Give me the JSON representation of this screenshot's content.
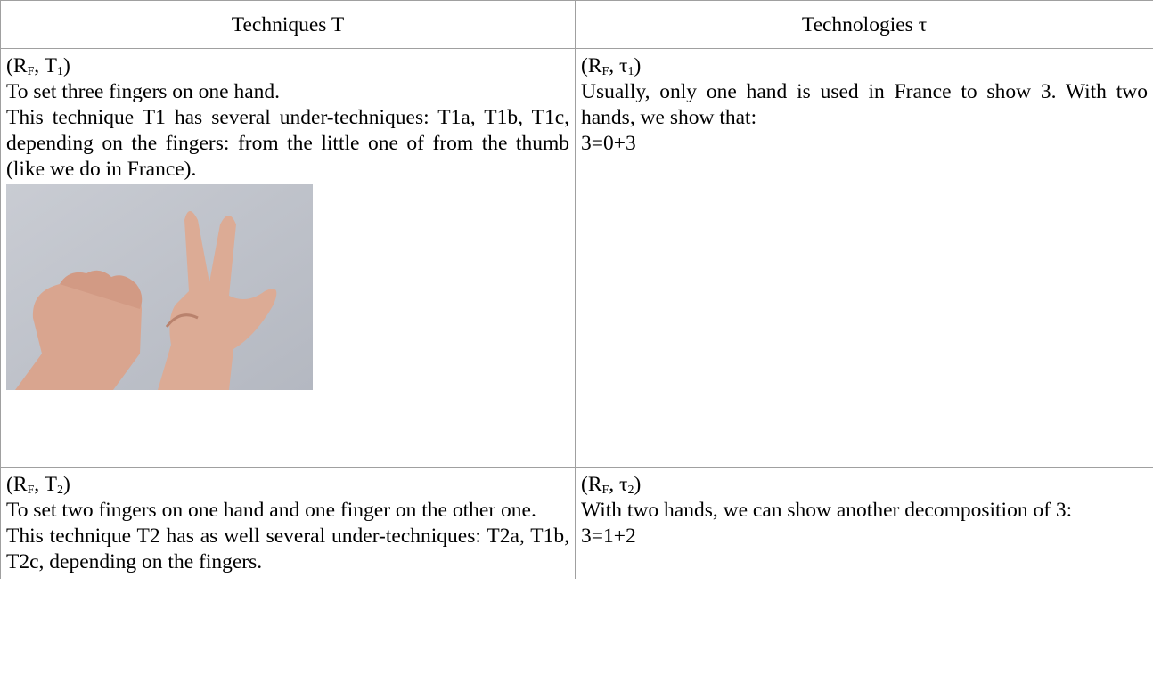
{
  "table": {
    "header": [
      "Techniques T",
      "Technologies τ"
    ],
    "rows": [
      [
        {
          "label": [
            "(R",
            "F",
            ", T",
            "1",
            ")"
          ],
          "paragraphs": [
            "To set three fingers on one hand.",
            "This technique T1 has several under-techniques: T1a, T1b, T1c, depending on the fingers: from the little one of from the thumb (like we do in France)."
          ]
        },
        {
          "label": [
            "(R",
            "F",
            ", τ",
            "1",
            ")"
          ],
          "paragraphs": [
            "Usually, only one hand is used in France to show 3. With two hands, we show that:",
            "3=0+3"
          ]
        }
      ],
      [
        {
          "label": [
            "(R",
            "F",
            ", T",
            "2",
            ")"
          ],
          "paragraphs": [
            "To set two fingers on one hand and one finger on the other one.",
            "This technique T2 has as well several under-techniques: T2a, T1b, T2c, depending on the fingers."
          ]
        },
        {
          "label": [
            "(R",
            "F",
            ", τ",
            "2",
            ")"
          ],
          "paragraphs": [
            "With two hands, we can show another decomposition of 3:",
            "3=1+2"
          ]
        }
      ]
    ]
  }
}
